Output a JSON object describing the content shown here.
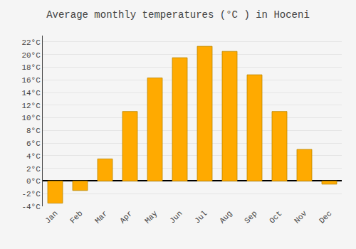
{
  "chart_data": {
    "type": "bar",
    "title": "Average monthly temperatures (°C ) in Hoceni",
    "categories": [
      "Jan",
      "Feb",
      "Mar",
      "Apr",
      "May",
      "Jun",
      "Jul",
      "Aug",
      "Sep",
      "Oct",
      "Nov",
      "Dec"
    ],
    "values": [
      -3.5,
      -1.5,
      3.5,
      11.0,
      16.3,
      19.5,
      21.3,
      20.5,
      16.8,
      11.0,
      5.0,
      -0.5
    ],
    "color": "#FFAA00",
    "ylim": [
      -4,
      23
    ],
    "yticks": [
      {
        "value": -4,
        "label": "-4°C"
      },
      {
        "value": -2,
        "label": "-2°C"
      },
      {
        "value": 0,
        "label": "0°C"
      },
      {
        "value": 2,
        "label": "2°C"
      },
      {
        "value": 4,
        "label": "4°C"
      },
      {
        "value": 6,
        "label": "6°C"
      },
      {
        "value": 8,
        "label": "8°C"
      },
      {
        "value": 10,
        "label": "10°C"
      },
      {
        "value": 12,
        "label": "12°C"
      },
      {
        "value": 14,
        "label": "14°C"
      },
      {
        "value": 16,
        "label": "16°C"
      },
      {
        "value": 18,
        "label": "18°C"
      },
      {
        "value": 20,
        "label": "20°C"
      },
      {
        "value": 22,
        "label": "22°C"
      }
    ],
    "grid": true
  }
}
